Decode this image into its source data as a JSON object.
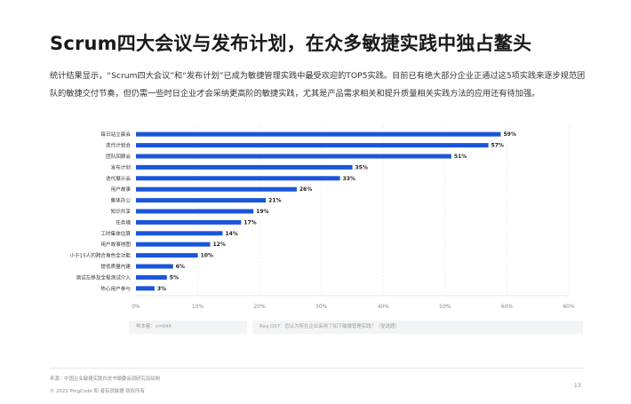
{
  "page": {
    "title": "Scrum四大会议与发布计划，在众多敏捷实践中独占鳌头",
    "intro": "统计结果显示，“Scrum四大会议”和“发布计划”已成为敏捷管理实践中最受欢迎的TOP5实践。目前已有绝大部分企业正通过这5项实践来逐步规范团队的敏捷交付节奏，但仍需一些时日企业才会采纳更高阶的敏捷实践，尤其是产品需求相关和提升质量相关实践方法的应用还有待加强。",
    "sample_note": "样本量：n=644",
    "question_note": "Req Q07：您认为所在企业采用了如下敏捷管理实践？（复选题）",
    "source": "来源：中国企业敏捷实践白皮书编委会调研究及绘制",
    "copyright": "© 2022 PingCode 和 者有说敏捷 版权所有",
    "page_number": "13"
  },
  "colors": {
    "bar": "#1a56db",
    "grid": "#e8e8e8",
    "axis": "#cccccc"
  },
  "chart_data": {
    "type": "bar",
    "orientation": "horizontal",
    "categories": [
      "每日站立晨会",
      "迭代计划会",
      "团队回顾会",
      "发布计划",
      "迭代展示会",
      "用户故事",
      "集体办公",
      "知识共享",
      "任务墙",
      "工时集体估算",
      "用户故事地图",
      "小于15人的跨合角色全功能",
      "提低质量内建",
      "测试左移及全程测试介入",
      "热心用户参与"
    ],
    "values": [
      59,
      57,
      51,
      35,
      33,
      26,
      21,
      19,
      17,
      14,
      12,
      10,
      6,
      5,
      3
    ],
    "value_labels": [
      "59%",
      "57%",
      "51%",
      "35%",
      "33%",
      "26%",
      "21%",
      "19%",
      "17%",
      "14%",
      "12%",
      "10%",
      "6%",
      "5%",
      "3%"
    ],
    "x_ticks": [
      "0%",
      "10%",
      "20%",
      "30%",
      "40%",
      "50%",
      "60%",
      "60%"
    ],
    "xlim": [
      0,
      70
    ],
    "grid": true,
    "title": "",
    "xlabel": "",
    "ylabel": ""
  }
}
